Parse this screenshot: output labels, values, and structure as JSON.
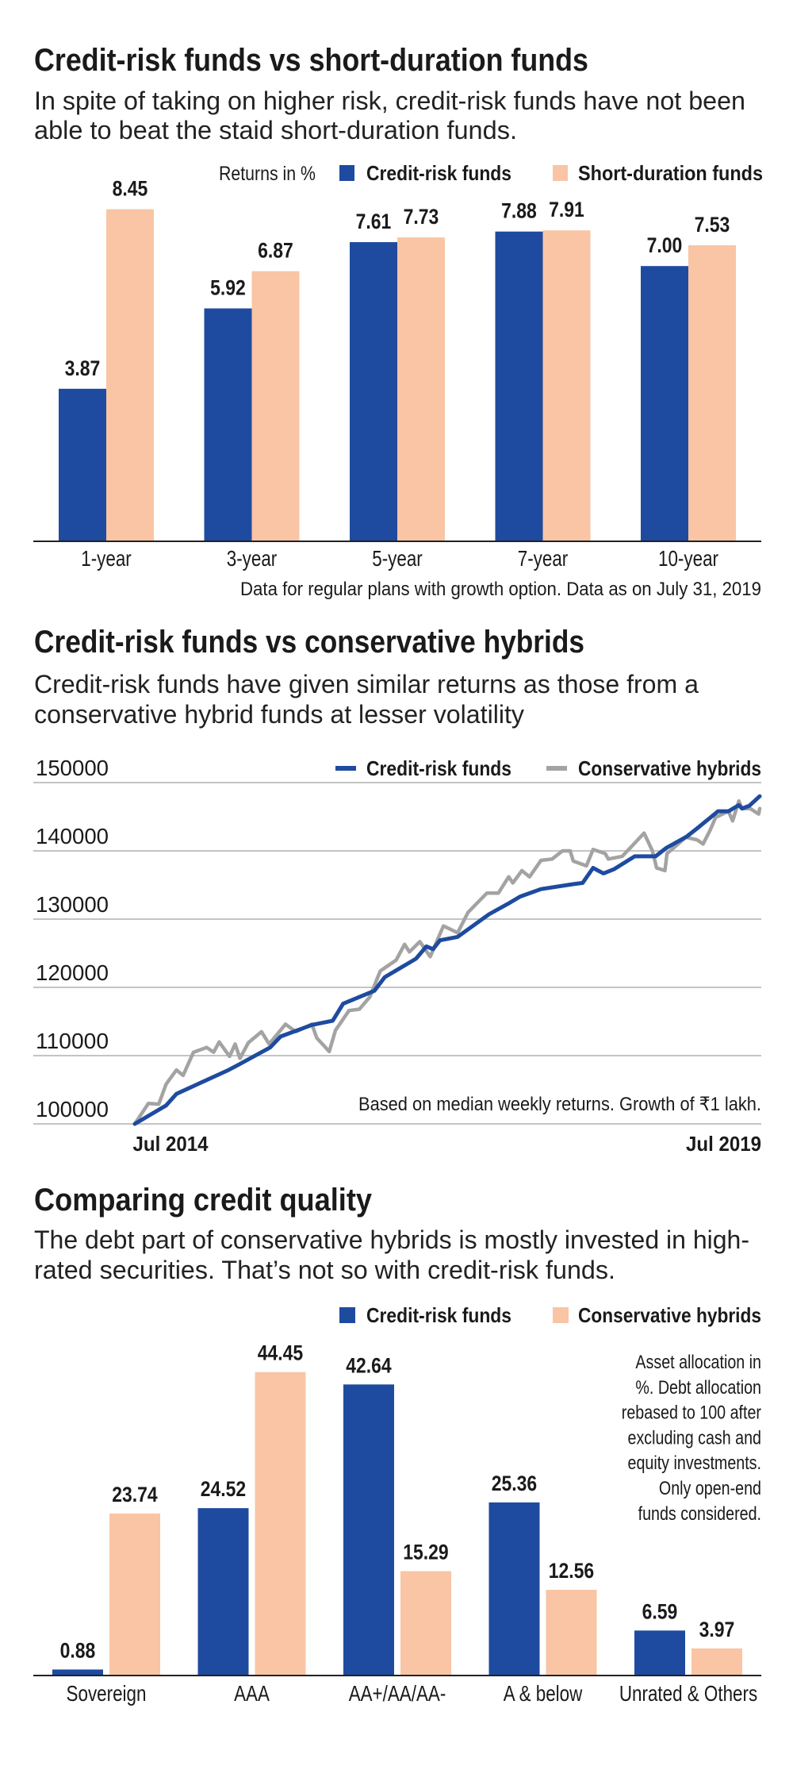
{
  "colors": {
    "credit_risk": "#1e4b9f",
    "peach": "#f9c5a4",
    "gray": "#a3a3a3",
    "grid": "#c4c4c4"
  },
  "chart_data": [
    {
      "type": "bar",
      "title": "Credit-risk funds vs short-duration funds",
      "subtitle": [
        "In spite of taking on higher risk, credit-risk funds have not been",
        "able to beat the staid short-duration funds."
      ],
      "unit_label": "Returns in %",
      "categories": [
        "1-year",
        "3-year",
        "5-year",
        "7-year",
        "10-year"
      ],
      "series": [
        {
          "name": "Credit-risk funds",
          "values": [
            3.87,
            5.92,
            7.61,
            7.88,
            7.0
          ],
          "labels": [
            "3.87",
            "5.92",
            "7.61",
            "7.88",
            "7.00"
          ]
        },
        {
          "name": "Short-duration funds",
          "values": [
            8.45,
            6.87,
            7.73,
            7.91,
            7.53
          ],
          "labels": [
            "8.45",
            "6.87",
            "7.73",
            "7.91",
            "7.53"
          ]
        }
      ],
      "legend": "top-right",
      "footnote": "Data for regular plans with growth option. Data as on July 31, 2019"
    },
    {
      "type": "line",
      "title": "Credit-risk funds vs conservative hybrids",
      "subtitle": [
        "Credit-risk funds have given similar returns as those from a",
        "conservative hybrid funds at lesser volatility"
      ],
      "ylim": [
        100000,
        150000
      ],
      "yticks": [
        "150000",
        "140000",
        "130000",
        "120000",
        "110000",
        "100000"
      ],
      "xticks": [
        "Jul 2014",
        "Jul 2019"
      ],
      "xlim": [
        "2014-07-01",
        "2019-07-01"
      ],
      "grid": true,
      "legend": "top-right",
      "note": "Based on median weekly returns. Growth of ₹1 lakh.",
      "series": [
        {
          "name": "Credit-risk funds",
          "points": [
            [
              "2014-07-01",
              100000
            ],
            [
              "2014-10-01",
              102700
            ],
            [
              "2014-11-01",
              104400
            ],
            [
              "2015-01-01",
              105800
            ],
            [
              "2015-04-01",
              107900
            ],
            [
              "2015-05-01",
              108700
            ],
            [
              "2015-08-01",
              111200
            ],
            [
              "2015-09-01",
              112800
            ],
            [
              "2015-12-01",
              114500
            ],
            [
              "2016-02-01",
              115100
            ],
            [
              "2016-03-01",
              117600
            ],
            [
              "2016-06-01",
              119500
            ],
            [
              "2016-07-01",
              121500
            ],
            [
              "2016-09-01",
              123300
            ],
            [
              "2016-10-01",
              124200
            ],
            [
              "2016-11-01",
              126000
            ],
            [
              "2016-11-20",
              125600
            ],
            [
              "2016-12-10",
              126900
            ],
            [
              "2017-02-01",
              127400
            ],
            [
              "2017-05-01",
              130700
            ],
            [
              "2017-07-01",
              132400
            ],
            [
              "2017-08-01",
              133300
            ],
            [
              "2017-10-01",
              134400
            ],
            [
              "2018-01-01",
              135100
            ],
            [
              "2018-02-01",
              135300
            ],
            [
              "2018-03-01",
              137500
            ],
            [
              "2018-04-01",
              136700
            ],
            [
              "2018-05-01",
              137300
            ],
            [
              "2018-07-01",
              139200
            ],
            [
              "2018-09-01",
              139200
            ],
            [
              "2018-10-01",
              140400
            ],
            [
              "2018-12-01",
              142100
            ],
            [
              "2019-01-01",
              143300
            ],
            [
              "2019-03-01",
              145800
            ],
            [
              "2019-04-01",
              145800
            ],
            [
              "2019-05-01",
              146700
            ],
            [
              "2019-05-10",
              146200
            ],
            [
              "2019-06-01",
              146600
            ],
            [
              "2019-07-01",
              148000
            ]
          ]
        },
        {
          "name": "Conservative hybrids",
          "points": [
            [
              "2014-07-01",
              100000
            ],
            [
              "2014-08-10",
              103000
            ],
            [
              "2014-09-10",
              102900
            ],
            [
              "2014-10-01",
              105800
            ],
            [
              "2014-11-01",
              107900
            ],
            [
              "2014-11-20",
              107100
            ],
            [
              "2014-12-20",
              110500
            ],
            [
              "2015-01-28",
              111200
            ],
            [
              "2015-02-18",
              110500
            ],
            [
              "2015-03-04",
              112000
            ],
            [
              "2015-04-04",
              109900
            ],
            [
              "2015-04-20",
              111700
            ],
            [
              "2015-05-04",
              109600
            ],
            [
              "2015-05-28",
              111900
            ],
            [
              "2015-07-06",
              113500
            ],
            [
              "2015-07-28",
              111700
            ],
            [
              "2015-09-15",
              114600
            ],
            [
              "2015-10-15",
              113500
            ],
            [
              "2015-12-01",
              114600
            ],
            [
              "2015-12-15",
              112600
            ],
            [
              "2016-01-21",
              110600
            ],
            [
              "2016-02-09",
              113700
            ],
            [
              "2016-03-18",
              116600
            ],
            [
              "2016-04-18",
              116800
            ],
            [
              "2016-05-18",
              118600
            ],
            [
              "2016-06-18",
              122400
            ],
            [
              "2016-08-04",
              124000
            ],
            [
              "2016-08-28",
              126300
            ],
            [
              "2016-09-12",
              125200
            ],
            [
              "2016-10-12",
              126700
            ],
            [
              "2016-11-12",
              124500
            ],
            [
              "2016-12-20",
              129000
            ],
            [
              "2017-02-01",
              128000
            ],
            [
              "2017-03-01",
              131000
            ],
            [
              "2017-04-25",
              133800
            ],
            [
              "2017-05-28",
              133800
            ],
            [
              "2017-06-28",
              136200
            ],
            [
              "2017-07-10",
              135300
            ],
            [
              "2017-08-06",
              137100
            ],
            [
              "2017-08-28",
              136200
            ],
            [
              "2017-10-01",
              138600
            ],
            [
              "2017-11-03",
              138800
            ],
            [
              "2017-12-03",
              140000
            ],
            [
              "2017-12-25",
              140000
            ],
            [
              "2018-01-04",
              138500
            ],
            [
              "2018-02-12",
              137800
            ],
            [
              "2018-03-01",
              140200
            ],
            [
              "2018-04-06",
              139600
            ],
            [
              "2018-04-15",
              138800
            ],
            [
              "2018-05-25",
              139200
            ],
            [
              "2018-06-25",
              140800
            ],
            [
              "2018-07-28",
              142600
            ],
            [
              "2018-08-22",
              140000
            ],
            [
              "2018-09-04",
              137500
            ],
            [
              "2018-09-28",
              137100
            ],
            [
              "2018-10-04",
              139600
            ],
            [
              "2018-11-06",
              141000
            ],
            [
              "2018-11-28",
              142000
            ],
            [
              "2019-01-01",
              141600
            ],
            [
              "2019-01-18",
              141000
            ],
            [
              "2019-02-09",
              143100
            ],
            [
              "2019-02-24",
              144900
            ],
            [
              "2019-04-01",
              145800
            ],
            [
              "2019-04-13",
              144400
            ],
            [
              "2019-05-01",
              147300
            ],
            [
              "2019-05-10",
              146200
            ],
            [
              "2019-06-04",
              146200
            ],
            [
              "2019-06-28",
              145400
            ],
            [
              "2019-07-01",
              146200
            ]
          ]
        }
      ]
    },
    {
      "type": "bar",
      "title": "Comparing credit quality",
      "subtitle": [
        "The debt part of conservative hybrids is mostly invested in high-",
        "rated securities. That’s not so with credit-risk funds."
      ],
      "categories": [
        "Sovereign",
        "AAA",
        "AA+/AA/AA-",
        "A & below",
        "Unrated & Others"
      ],
      "series": [
        {
          "name": "Credit-risk funds",
          "values": [
            0.88,
            24.52,
            42.64,
            25.36,
            6.59
          ],
          "labels": [
            "0.88",
            "24.52",
            "42.64",
            "25.36",
            "6.59"
          ]
        },
        {
          "name": "Conservative hybrids",
          "values": [
            23.74,
            44.45,
            15.29,
            12.56,
            3.97
          ],
          "labels": [
            "23.74",
            "44.45",
            "15.29",
            "12.56",
            "3.97"
          ]
        }
      ],
      "legend": "top-right",
      "note": [
        "Asset allocation in",
        "%. Debt allocation",
        "rebased to 100 after",
        "excluding cash and",
        "equity investments.",
        "Only open-end",
        "funds considered."
      ]
    }
  ]
}
